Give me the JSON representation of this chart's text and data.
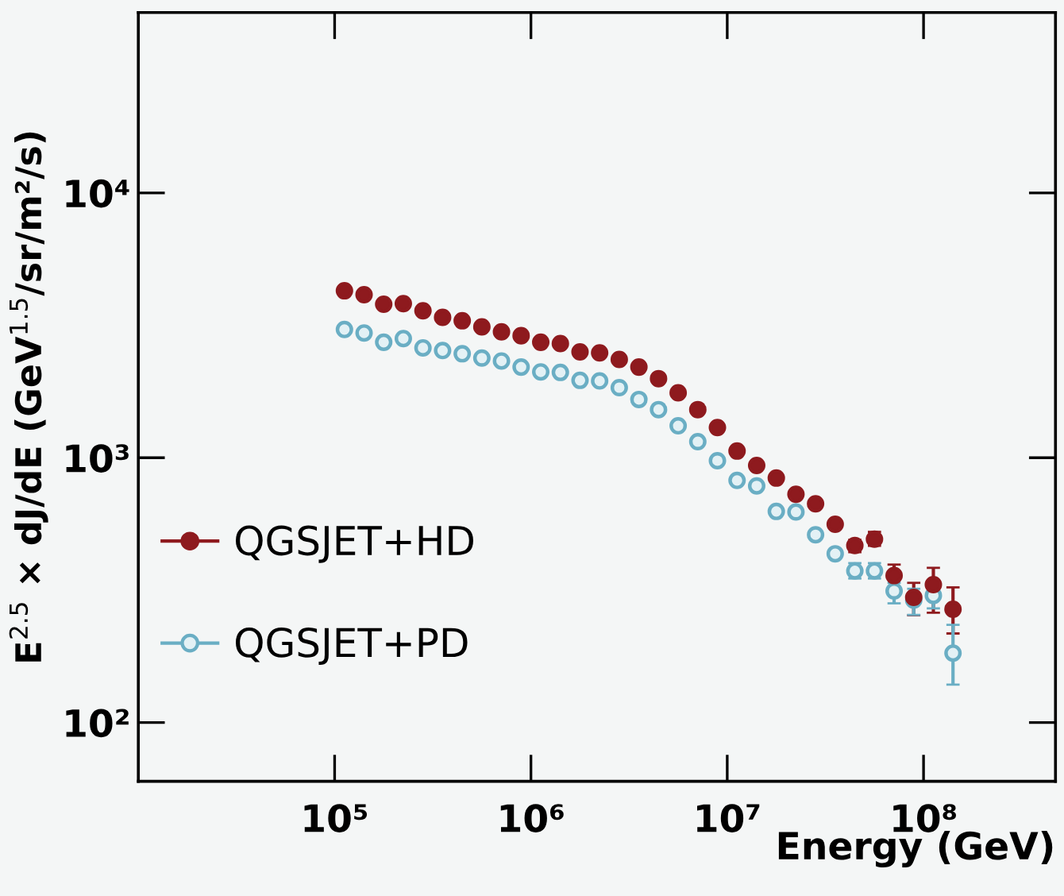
{
  "chart_data": {
    "type": "scatter",
    "xlabel": "Energy (GeV)",
    "ylabel": "E$^{2.5}$ × dJ/dE (GeV$^{1.5}$/sr/m²/s)",
    "x": [
      112202,
      141254,
      177828,
      223872,
      281838,
      354813,
      446684,
      562341,
      707946,
      891251,
      1122018,
      1412538,
      1778279,
      2238721,
      2818383,
      3548134,
      4466836,
      5623413,
      7079458,
      8912509,
      11220185,
      14125375,
      17782794,
      22387211,
      28183829,
      35481339,
      44668359,
      56234133,
      70794578,
      89125094,
      112201845,
      141253754
    ],
    "series": [
      {
        "name": "QGSJET+HD",
        "color": "#8e1a1e",
        "values": [
          4270,
          4130,
          3800,
          3820,
          3590,
          3390,
          3290,
          3120,
          2990,
          2890,
          2730,
          2700,
          2510,
          2490,
          2350,
          2200,
          1990,
          1760,
          1520,
          1300,
          1060,
          935,
          838,
          728,
          670,
          561,
          466,
          493,
          359,
          297,
          332,
          268
        ],
        "errors": [
          null,
          null,
          null,
          null,
          null,
          null,
          null,
          null,
          null,
          null,
          null,
          null,
          null,
          null,
          null,
          null,
          null,
          null,
          null,
          null,
          null,
          null,
          null,
          null,
          null,
          null,
          [
            440,
            490
          ],
          [
            465,
            525
          ],
          [
            325,
            395
          ],
          [
            254,
            337
          ],
          [
            260,
            384
          ],
          [
            217,
            324
          ]
        ]
      },
      {
        "name": "QGSJET+PD",
        "color": "#6aaec4",
        "values": [
          3050,
          2960,
          2730,
          2820,
          2600,
          2540,
          2470,
          2380,
          2320,
          2200,
          2110,
          2100,
          1960,
          1950,
          1840,
          1660,
          1520,
          1320,
          1150,
          975,
          821,
          783,
          627,
          624,
          512,
          434,
          374,
          374,
          314,
          290,
          302,
          183
        ],
        "errors": [
          null,
          null,
          null,
          null,
          null,
          null,
          null,
          null,
          null,
          null,
          null,
          null,
          null,
          null,
          null,
          null,
          null,
          null,
          null,
          null,
          null,
          null,
          null,
          null,
          null,
          null,
          [
            350,
            400
          ],
          [
            350,
            400
          ],
          [
            282,
            337
          ],
          [
            255,
            320
          ],
          [
            270,
            302
          ],
          [
            139,
            234
          ]
        ]
      }
    ],
    "log": "xy",
    "xlim": [
      10000,
      470000000
    ],
    "ylim": [
      60,
      48000
    ],
    "xticks": [
      {
        "value": 100000,
        "label": "10⁵"
      },
      {
        "value": 1000000,
        "label": "10⁶"
      },
      {
        "value": 10000000,
        "label": "10⁷"
      },
      {
        "value": 100000000,
        "label": "10⁸"
      }
    ],
    "yticks": [
      {
        "value": 100,
        "label": "10²"
      },
      {
        "value": 1000,
        "label": "10³"
      },
      {
        "value": 10000,
        "label": "10⁴"
      }
    ],
    "marker": "circle",
    "legend": "bottom left",
    "grid": false
  }
}
